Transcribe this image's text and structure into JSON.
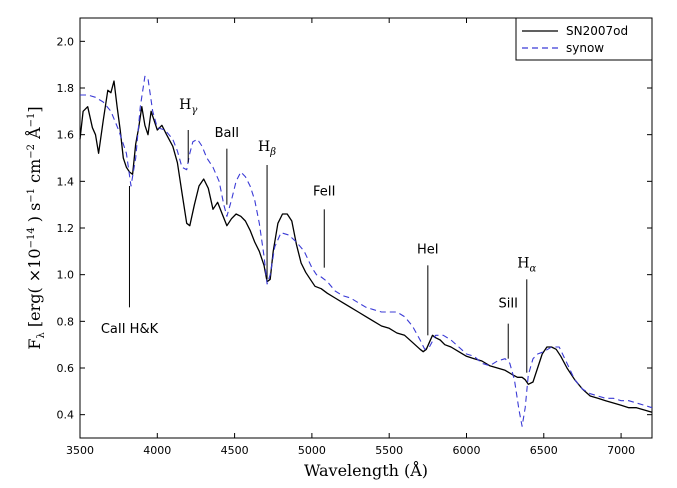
{
  "chart_data": {
    "type": "line",
    "xlabel": "Wavelength (Å)",
    "ylabel": "F_λ [erg( ×10^−14 ) s^−1 cm^−2 Å^−1]",
    "xlim": [
      3500,
      7200
    ],
    "ylim": [
      0.3,
      2.1
    ],
    "x_ticks": [
      3500,
      4000,
      4500,
      5000,
      5500,
      6000,
      6500,
      7000
    ],
    "x_tick_labels": [
      "3500",
      "4000",
      "4500",
      "5000",
      "5500",
      "6000",
      "6500",
      "7000"
    ],
    "y_ticks": [
      0.4,
      0.6,
      0.8,
      1.0,
      1.2,
      1.4,
      1.6,
      1.8,
      2.0
    ],
    "y_tick_labels": [
      "0.4",
      "0.6",
      "0.8",
      "1.0",
      "1.2",
      "1.4",
      "1.6",
      "1.8",
      "2.0"
    ],
    "legend_position": "top-right",
    "series": [
      {
        "name": "SN2007od",
        "color": "#000000",
        "style": "solid",
        "x": [
          3500,
          3520,
          3550,
          3580,
          3600,
          3620,
          3650,
          3680,
          3700,
          3720,
          3740,
          3760,
          3780,
          3800,
          3820,
          3840,
          3860,
          3880,
          3900,
          3920,
          3940,
          3960,
          3980,
          4000,
          4030,
          4060,
          4100,
          4130,
          4160,
          4190,
          4210,
          4240,
          4270,
          4300,
          4330,
          4360,
          4390,
          4420,
          4450,
          4480,
          4510,
          4540,
          4570,
          4600,
          4630,
          4660,
          4690,
          4710,
          4730,
          4750,
          4780,
          4810,
          4840,
          4870,
          4900,
          4930,
          4960,
          4990,
          5020,
          5060,
          5100,
          5150,
          5200,
          5250,
          5300,
          5350,
          5400,
          5450,
          5500,
          5550,
          5600,
          5650,
          5700,
          5720,
          5740,
          5760,
          5780,
          5800,
          5830,
          5860,
          5900,
          5950,
          6000,
          6050,
          6100,
          6150,
          6200,
          6250,
          6300,
          6330,
          6360,
          6380,
          6400,
          6430,
          6460,
          6490,
          6520,
          6550,
          6580,
          6610,
          6650,
          6700,
          6750,
          6800,
          6850,
          6900,
          6950,
          7000,
          7050,
          7100,
          7150,
          7200
        ],
        "y": [
          1.58,
          1.7,
          1.72,
          1.63,
          1.6,
          1.52,
          1.66,
          1.79,
          1.78,
          1.83,
          1.72,
          1.62,
          1.5,
          1.46,
          1.44,
          1.43,
          1.56,
          1.63,
          1.72,
          1.64,
          1.6,
          1.7,
          1.66,
          1.62,
          1.64,
          1.6,
          1.55,
          1.48,
          1.35,
          1.22,
          1.21,
          1.3,
          1.38,
          1.41,
          1.37,
          1.28,
          1.31,
          1.26,
          1.21,
          1.24,
          1.26,
          1.25,
          1.23,
          1.19,
          1.14,
          1.1,
          1.04,
          0.97,
          0.98,
          1.1,
          1.22,
          1.26,
          1.26,
          1.23,
          1.13,
          1.05,
          1.01,
          0.98,
          0.95,
          0.94,
          0.92,
          0.9,
          0.88,
          0.86,
          0.84,
          0.82,
          0.8,
          0.78,
          0.77,
          0.75,
          0.74,
          0.71,
          0.68,
          0.67,
          0.68,
          0.71,
          0.74,
          0.73,
          0.72,
          0.7,
          0.69,
          0.67,
          0.65,
          0.64,
          0.63,
          0.61,
          0.6,
          0.59,
          0.57,
          0.56,
          0.56,
          0.55,
          0.53,
          0.54,
          0.6,
          0.66,
          0.69,
          0.69,
          0.68,
          0.65,
          0.6,
          0.55,
          0.51,
          0.48,
          0.47,
          0.46,
          0.45,
          0.44,
          0.43,
          0.43,
          0.42,
          0.41
        ]
      },
      {
        "name": "synow",
        "color": "#3b3bd6",
        "style": "dashed",
        "x": [
          3500,
          3550,
          3600,
          3650,
          3700,
          3750,
          3800,
          3830,
          3860,
          3890,
          3920,
          3940,
          3970,
          4000,
          4050,
          4100,
          4130,
          4160,
          4190,
          4210,
          4230,
          4260,
          4290,
          4320,
          4360,
          4400,
          4430,
          4450,
          4480,
          4510,
          4540,
          4570,
          4600,
          4630,
          4660,
          4690,
          4710,
          4730,
          4760,
          4800,
          4850,
          4900,
          4950,
          5000,
          5030,
          5060,
          5100,
          5150,
          5200,
          5250,
          5300,
          5350,
          5400,
          5450,
          5500,
          5550,
          5600,
          5650,
          5700,
          5730,
          5760,
          5800,
          5850,
          5900,
          5950,
          6000,
          6050,
          6100,
          6150,
          6200,
          6250,
          6280,
          6310,
          6340,
          6360,
          6380,
          6400,
          6430,
          6460,
          6500,
          6550,
          6600,
          6650,
          6700,
          6750,
          6800,
          6850,
          6900,
          6950,
          7000,
          7050,
          7100,
          7150,
          7200
        ],
        "y": [
          1.77,
          1.77,
          1.76,
          1.74,
          1.7,
          1.62,
          1.52,
          1.38,
          1.5,
          1.72,
          1.85,
          1.84,
          1.7,
          1.63,
          1.62,
          1.58,
          1.53,
          1.46,
          1.45,
          1.52,
          1.57,
          1.58,
          1.55,
          1.5,
          1.46,
          1.4,
          1.3,
          1.25,
          1.32,
          1.4,
          1.44,
          1.42,
          1.38,
          1.32,
          1.22,
          1.08,
          0.96,
          1.0,
          1.12,
          1.18,
          1.17,
          1.14,
          1.1,
          1.03,
          1.0,
          0.99,
          0.97,
          0.93,
          0.91,
          0.9,
          0.88,
          0.86,
          0.85,
          0.84,
          0.84,
          0.84,
          0.82,
          0.78,
          0.72,
          0.68,
          0.69,
          0.74,
          0.74,
          0.72,
          0.69,
          0.66,
          0.65,
          0.62,
          0.61,
          0.63,
          0.64,
          0.62,
          0.55,
          0.42,
          0.35,
          0.43,
          0.57,
          0.64,
          0.66,
          0.67,
          0.69,
          0.69,
          0.62,
          0.55,
          0.51,
          0.49,
          0.48,
          0.47,
          0.47,
          0.46,
          0.46,
          0.45,
          0.44,
          0.43
        ]
      }
    ],
    "annotations": [
      {
        "label": "CaII H&K",
        "x": 3820,
        "label_y": 0.75,
        "line_from": 1.38,
        "line_to": 0.86,
        "style": "sans"
      },
      {
        "label": "H",
        "sub": "γ",
        "x": 4200,
        "label_y": 1.71,
        "line_from": 1.62,
        "line_to": 1.48,
        "style": "serif"
      },
      {
        "label": "BaII",
        "x": 4450,
        "label_y": 1.59,
        "line_from": 1.54,
        "line_to": 1.3,
        "style": "sans"
      },
      {
        "label": "H",
        "sub": "β",
        "x": 4710,
        "label_y": 1.53,
        "line_from": 1.47,
        "line_to": 0.98,
        "style": "serif"
      },
      {
        "label": "FeII",
        "x": 5080,
        "label_y": 1.34,
        "line_from": 1.28,
        "line_to": 1.03,
        "style": "sans"
      },
      {
        "label": "HeI",
        "x": 5750,
        "label_y": 1.09,
        "line_from": 1.04,
        "line_to": 0.74,
        "style": "sans"
      },
      {
        "label": "SiII",
        "x": 6270,
        "label_y": 0.86,
        "line_from": 0.79,
        "line_to": 0.64,
        "style": "sans"
      },
      {
        "label": "H",
        "sub": "α",
        "x": 6390,
        "label_y": 1.03,
        "line_from": 0.98,
        "line_to": 0.58,
        "style": "serif"
      }
    ]
  }
}
